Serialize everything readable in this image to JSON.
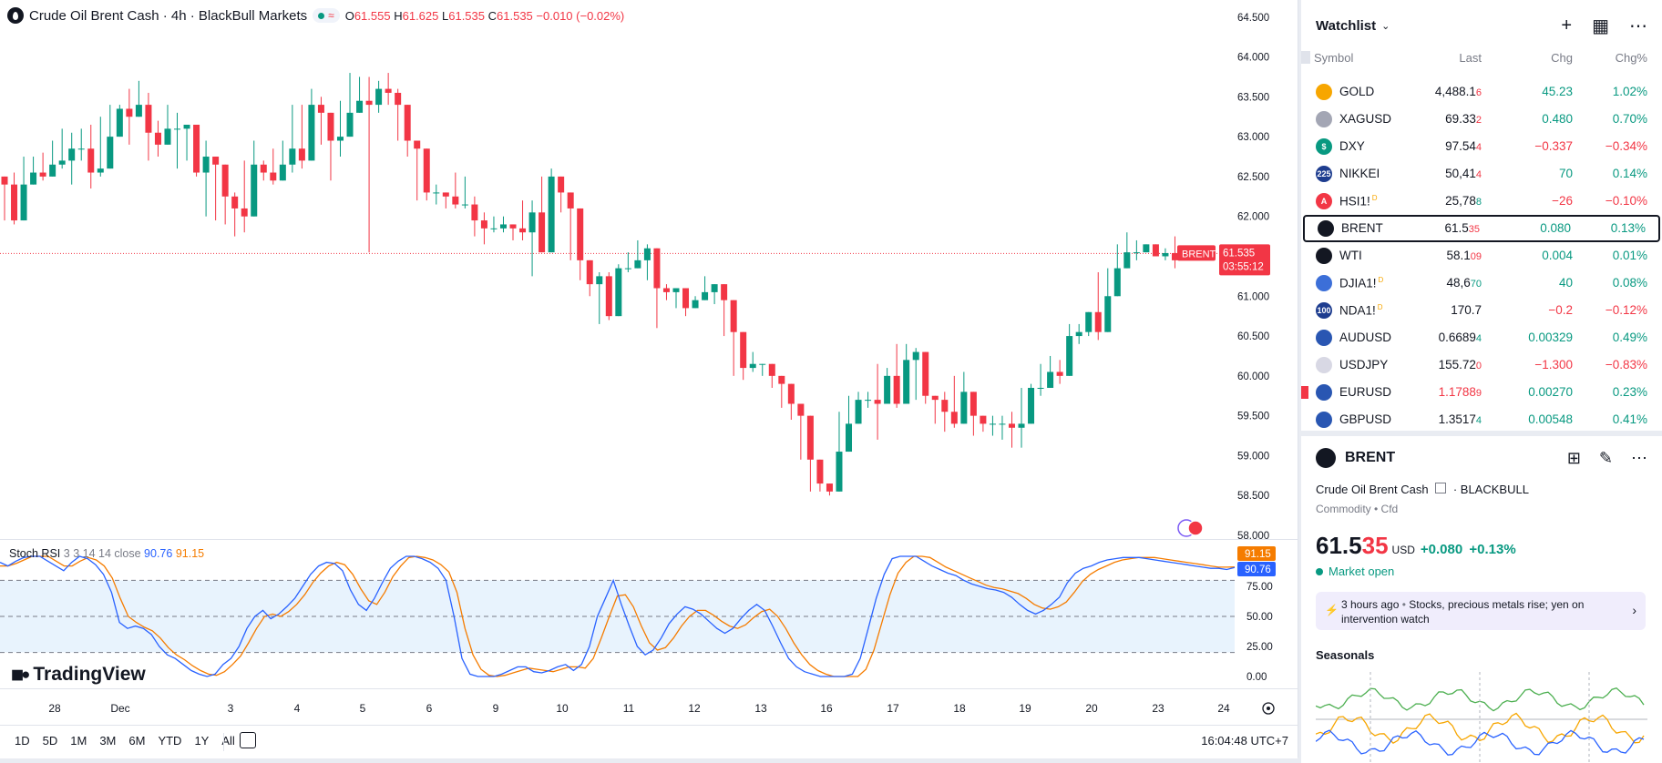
{
  "legend": {
    "symbol_title": "Crude Oil Brent Cash · 4h · BlackBull Markets",
    "open_label": "O",
    "open": "61.555",
    "high_label": "H",
    "high": "61.625",
    "low_label": "L",
    "low": "61.535",
    "close_label": "C",
    "close": "61.535",
    "change": "−0.010 (−0.02%)",
    "pill_glyph": "≈"
  },
  "price_axis": {
    "labels": [
      "64.500",
      "64.000",
      "63.500",
      "63.000",
      "62.500",
      "62.000",
      "61.500",
      "61.000",
      "60.500",
      "60.000",
      "59.500",
      "59.000",
      "58.500",
      "58.000"
    ],
    "current_tag": "BRENT",
    "current_price": "61.535",
    "countdown": "03:55:12"
  },
  "rsi": {
    "name": "Stoch RSI",
    "params": "3 3 14 14 close",
    "k_value": "90.76",
    "d_value": "91.15",
    "axis_labels": [
      "75.00",
      "50.00",
      "25.00",
      "0.00"
    ],
    "k_color": "#2962ff",
    "d_color": "#f57c00"
  },
  "time_axis": {
    "labels": [
      "28",
      "Dec",
      "3",
      "4",
      "5",
      "6",
      "9",
      "10",
      "11",
      "12",
      "13",
      "16",
      "17",
      "18",
      "19",
      "20",
      "23",
      "24"
    ]
  },
  "brand": {
    "name": "TradingView"
  },
  "bottom_bar": {
    "periods": [
      "1D",
      "5D",
      "1M",
      "3M",
      "6M",
      "YTD",
      "1Y",
      "All"
    ],
    "clock": "16:04:48 UTC+7"
  },
  "chart_data": {
    "type": "candlestick",
    "title": "Crude Oil Brent Cash · 4h · BlackBull Markets",
    "ylim": [
      58.0,
      64.6
    ],
    "current_price": 61.535,
    "up_color": "#089981",
    "down_color": "#f23645",
    "x": [
      "28",
      "Dec",
      "3",
      "4",
      "5",
      "6",
      "9",
      "10",
      "11",
      "12",
      "13",
      "16",
      "17",
      "18",
      "19",
      "20",
      "23",
      "24"
    ],
    "candles": [
      [
        62.4,
        62.3,
        61.95
      ],
      [
        61.95,
        62.55,
        61.9
      ],
      [
        62.4,
        62.75,
        62.35
      ],
      [
        62.55,
        62.75,
        62.5
      ],
      [
        62.5,
        62.8,
        62.45
      ],
      [
        62.65,
        62.95,
        62.55
      ],
      [
        62.7,
        63.1,
        62.6
      ],
      [
        62.85,
        63.05,
        62.4
      ],
      [
        62.85,
        63.1,
        62.7
      ],
      [
        62.55,
        63.15,
        62.35
      ],
      [
        62.6,
        63.25,
        62.5
      ],
      [
        63.0,
        63.4,
        62.9
      ],
      [
        63.35,
        63.4,
        63.0
      ],
      [
        63.25,
        63.6,
        62.9
      ],
      [
        63.4,
        63.7,
        63.3
      ],
      [
        63.05,
        63.55,
        62.7
      ],
      [
        62.9,
        63.2,
        62.75
      ],
      [
        63.1,
        63.4,
        63.0
      ],
      [
        63.1,
        63.3,
        62.6
      ],
      [
        63.15,
        63.1,
        62.7
      ],
      [
        62.55,
        63.05,
        62.5
      ],
      [
        62.75,
        62.95,
        62.0
      ],
      [
        62.65,
        62.75,
        61.95
      ],
      [
        62.25,
        62.5,
        61.9
      ],
      [
        62.1,
        62.3,
        61.75
      ],
      [
        62.0,
        62.7,
        61.8
      ],
      [
        62.65,
        62.95,
        62.45
      ],
      [
        62.55,
        62.7,
        62.45
      ],
      [
        62.45,
        62.85,
        62.4
      ],
      [
        62.65,
        62.95,
        62.55
      ],
      [
        62.85,
        63.4,
        62.55
      ],
      [
        62.7,
        63.4,
        62.6
      ],
      [
        63.4,
        63.6,
        63.05
      ],
      [
        63.3,
        63.5,
        62.9
      ],
      [
        62.95,
        63.2,
        62.45
      ],
      [
        63.0,
        63.45,
        62.75
      ],
      [
        63.3,
        63.8,
        63.2
      ],
      [
        63.45,
        63.75,
        63.35
      ],
      [
        63.4,
        63.75,
        61.55
      ],
      [
        63.6,
        63.7,
        63.3
      ],
      [
        63.55,
        63.8,
        63.4
      ],
      [
        63.4,
        63.6,
        62.95
      ],
      [
        62.95,
        62.85,
        62.75
      ],
      [
        62.85,
        62.95,
        62.2
      ],
      [
        62.3,
        62.65,
        62.2
      ],
      [
        62.3,
        62.4,
        62.15
      ],
      [
        62.25,
        62.3,
        62.1
      ],
      [
        62.15,
        62.55,
        62.1
      ],
      [
        62.15,
        62.5,
        62.1
      ],
      [
        61.95,
        62.25,
        61.75
      ],
      [
        61.85,
        62.05,
        61.65
      ],
      [
        61.85,
        62.0,
        61.8
      ],
      [
        61.9,
        62.0,
        61.8
      ],
      [
        61.85,
        61.9,
        61.7
      ],
      [
        61.8,
        62.2,
        61.7
      ],
      [
        62.05,
        62.2,
        61.25
      ],
      [
        61.55,
        62.5,
        61.55
      ],
      [
        62.5,
        62.6,
        62.4
      ],
      [
        62.3,
        62.5,
        62.05
      ],
      [
        62.1,
        62.1,
        61.45
      ],
      [
        61.45,
        61.5,
        61.2
      ],
      [
        61.15,
        61.25,
        61.0
      ],
      [
        61.25,
        61.3,
        60.65
      ],
      [
        60.75,
        61.3,
        60.7
      ],
      [
        61.35,
        61.4,
        61.2
      ],
      [
        61.35,
        61.55,
        61.3
      ],
      [
        61.45,
        61.7,
        61.4
      ],
      [
        61.6,
        61.65,
        61.2
      ],
      [
        61.1,
        61.15,
        60.6
      ],
      [
        61.05,
        61.15,
        60.95
      ],
      [
        61.1,
        61.1,
        60.85
      ],
      [
        60.85,
        61.0,
        60.75
      ],
      [
        60.95,
        61.0,
        60.85
      ],
      [
        61.05,
        61.25,
        61.0
      ],
      [
        61.15,
        61.1,
        60.9
      ],
      [
        60.95,
        60.9,
        60.5
      ],
      [
        60.55,
        60.6,
        60.0
      ],
      [
        60.1,
        60.4,
        59.95
      ],
      [
        60.15,
        60.3,
        60.05
      ],
      [
        60.15,
        60.15,
        60.0
      ],
      [
        60.0,
        60.1,
        59.85
      ],
      [
        59.9,
        59.95,
        59.6
      ],
      [
        59.65,
        59.7,
        59.45
      ],
      [
        59.5,
        59.55,
        58.95
      ],
      [
        58.95,
        58.95,
        58.55
      ],
      [
        58.65,
        58.7,
        58.55
      ],
      [
        58.55,
        58.65,
        58.5
      ],
      [
        59.05,
        59.55,
        59.0
      ],
      [
        59.4,
        59.75,
        59.35
      ],
      [
        59.7,
        59.8,
        59.7
      ],
      [
        59.7,
        59.8,
        59.6
      ],
      [
        59.65,
        60.15,
        59.2
      ],
      [
        60.0,
        60.1,
        59.85
      ],
      [
        59.65,
        60.4,
        59.6
      ],
      [
        60.2,
        60.4,
        60.05
      ],
      [
        60.3,
        60.35,
        59.7
      ],
      [
        59.75,
        59.95,
        59.65
      ],
      [
        59.7,
        59.7,
        59.4
      ],
      [
        59.55,
        59.8,
        59.3
      ],
      [
        59.4,
        60.0,
        59.35
      ],
      [
        59.8,
        60.05,
        59.55
      ],
      [
        59.5,
        59.55,
        59.25
      ],
      [
        59.4,
        59.45,
        59.3
      ],
      [
        59.4,
        59.5,
        59.25
      ],
      [
        59.4,
        59.5,
        59.2
      ],
      [
        59.35,
        59.55,
        59.1
      ],
      [
        59.4,
        59.85,
        59.1
      ],
      [
        59.85,
        59.9,
        59.75
      ],
      [
        59.85,
        60.15,
        59.75
      ],
      [
        60.05,
        60.25,
        59.95
      ],
      [
        60.0,
        60.2,
        59.9
      ],
      [
        60.5,
        60.65,
        60.4
      ],
      [
        60.55,
        60.65,
        60.4
      ],
      [
        60.8,
        60.75,
        60.5
      ],
      [
        60.55,
        61.3,
        60.45
      ],
      [
        61.0,
        61.35,
        61.0
      ],
      [
        61.35,
        61.65,
        61.3
      ],
      [
        61.55,
        61.8,
        61.45
      ],
      [
        61.55,
        61.7,
        61.45
      ],
      [
        61.65,
        61.65,
        61.55
      ],
      [
        61.5,
        61.6,
        61.5
      ],
      [
        61.54,
        61.6,
        61.45
      ],
      [
        61.45,
        61.75,
        61.35
      ],
      [
        61.55,
        61.625,
        61.535
      ]
    ],
    "stoch_rsi": {
      "params": "3 3 14 14 close",
      "axis_ticks": [
        75,
        50,
        25,
        0
      ],
      "overbought": 80,
      "oversold": 20,
      "k": [
        95,
        92,
        96,
        99,
        104,
        102,
        96,
        92,
        88,
        95,
        100,
        98,
        93,
        85,
        70,
        45,
        40,
        42,
        40,
        35,
        25,
        18,
        15,
        10,
        5,
        2,
        0,
        2,
        10,
        15,
        25,
        40,
        50,
        55,
        48,
        52,
        58,
        65,
        75,
        85,
        92,
        95,
        94,
        88,
        72,
        60,
        55,
        65,
        78,
        90,
        96,
        103,
        100,
        98,
        95,
        90,
        80,
        50,
        15,
        2,
        0,
        0,
        0,
        2,
        5,
        8,
        8,
        4,
        3,
        5,
        8,
        10,
        5,
        10,
        25,
        50,
        65,
        80,
        60,
        42,
        25,
        18,
        22,
        32,
        44,
        52,
        58,
        56,
        52,
        46,
        40,
        36,
        40,
        48,
        55,
        60,
        55,
        42,
        28,
        15,
        8,
        4,
        2,
        0,
        0,
        0,
        0,
        2,
        15,
        40,
        65,
        85,
        98,
        100,
        102,
        100,
        96,
        92,
        89,
        86,
        84,
        80,
        77,
        75,
        73,
        72,
        70,
        66,
        60,
        55,
        52,
        55,
        60,
        66,
        78,
        86,
        90,
        92,
        95,
        97,
        98,
        99,
        99,
        99,
        98,
        97,
        96,
        95,
        94,
        93,
        92,
        91,
        90,
        90,
        89,
        90.76
      ],
      "d": [
        92,
        92,
        94,
        97,
        101,
        103,
        100,
        96,
        92,
        92,
        96,
        99,
        97,
        92,
        82,
        65,
        50,
        45,
        41,
        38,
        32,
        24,
        18,
        14,
        9,
        5,
        2,
        1,
        4,
        10,
        17,
        28,
        40,
        50,
        52,
        50,
        54,
        60,
        68,
        78,
        86,
        92,
        95,
        93,
        85,
        73,
        63,
        60,
        70,
        83,
        92,
        99,
        101,
        99,
        97,
        93,
        87,
        70,
        40,
        18,
        6,
        1,
        0,
        1,
        3,
        5,
        7,
        6,
        5,
        4,
        6,
        8,
        8,
        7,
        15,
        32,
        50,
        67,
        68,
        58,
        42,
        28,
        22,
        24,
        32,
        42,
        50,
        55,
        55,
        51,
        46,
        42,
        40,
        43,
        49,
        54,
        56,
        50,
        40,
        28,
        18,
        10,
        5,
        2,
        0,
        0,
        0,
        0,
        6,
        22,
        45,
        68,
        86,
        95,
        100,
        101,
        99,
        95,
        91,
        88,
        85,
        82,
        79,
        76,
        74,
        73,
        71,
        69,
        65,
        60,
        57,
        56,
        58,
        62,
        70,
        79,
        85,
        89,
        92,
        95,
        97,
        98,
        99,
        99,
        99,
        98,
        97,
        96,
        95,
        94,
        93,
        92,
        91,
        91,
        91.15
      ]
    }
  },
  "watchlist": {
    "title": "Watchlist",
    "columns": {
      "symbol": "Symbol",
      "last": "Last",
      "chg": "Chg",
      "chg_pct": "Chg%"
    },
    "rows": [
      {
        "icon_text": "",
        "icon_color": "#f7a600",
        "symbol": "GOLD",
        "sup": "",
        "last_main": "4,488.1",
        "last_tail": "6",
        "chg": "45.23",
        "pct": "1.02%",
        "dir": "pos",
        "tail_dir": "neg"
      },
      {
        "icon_text": "",
        "icon_color": "#a3a6b4",
        "symbol": "XAGUSD",
        "sup": "",
        "last_main": "69.33",
        "last_tail": "2",
        "chg": "0.480",
        "pct": "0.70%",
        "dir": "pos",
        "tail_dir": "neg"
      },
      {
        "icon_text": "$",
        "icon_color": "#089981",
        "symbol": "DXY",
        "sup": "",
        "last_main": "97.54",
        "last_tail": "4",
        "chg": "−0.337",
        "pct": "−0.34%",
        "dir": "neg",
        "tail_dir": "neg"
      },
      {
        "icon_text": "225",
        "icon_color": "#1e3d8f",
        "symbol": "NIKKEI",
        "sup": "",
        "last_main": "50,41",
        "last_tail": "4",
        "chg": "70",
        "pct": "0.14%",
        "dir": "pos",
        "tail_dir": "neg"
      },
      {
        "icon_text": "A",
        "icon_color": "#f23645",
        "symbol": "HSI1!",
        "sup": "D",
        "last_main": "25,78",
        "last_tail": "8",
        "chg": "−26",
        "pct": "−0.10%",
        "dir": "neg",
        "tail_dir": "pos"
      },
      {
        "icon_text": "",
        "icon_color": "#131722",
        "symbol": "BRENT",
        "sup": "",
        "last_main": "61.5",
        "last_tail": "35",
        "chg": "0.080",
        "pct": "0.13%",
        "dir": "pos",
        "tail_dir": "neg",
        "selected": true
      },
      {
        "icon_text": "",
        "icon_color": "#131722",
        "symbol": "WTI",
        "sup": "",
        "last_main": "58.1",
        "last_tail": "09",
        "chg": "0.004",
        "pct": "0.01%",
        "dir": "pos",
        "tail_dir": "neg"
      },
      {
        "icon_text": "",
        "icon_color": "#3c6fd8",
        "symbol": "DJIA1!",
        "sup": "D",
        "last_main": "48,6",
        "last_tail": "70",
        "chg": "40",
        "pct": "0.08%",
        "dir": "pos",
        "tail_dir": "pos"
      },
      {
        "icon_text": "100",
        "icon_color": "#1e3d8f",
        "symbol": "NDA1!",
        "sup": "D",
        "last_main": "170.7",
        "last_tail": "",
        "chg": "−0.2",
        "pct": "−0.12%",
        "dir": "neg",
        "tail_dir": "neg"
      },
      {
        "icon_text": "",
        "icon_color": "#2956b2",
        "symbol": "AUDUSD",
        "sup": "",
        "last_main": "0.6689",
        "last_tail": "4",
        "chg": "0.00329",
        "pct": "0.49%",
        "dir": "pos",
        "tail_dir": "pos"
      },
      {
        "icon_text": "",
        "icon_color": "#d8d8e4",
        "symbol": "USDJPY",
        "sup": "",
        "last_main": "155.72",
        "last_tail": "0",
        "chg": "−1.300",
        "pct": "−0.83%",
        "dir": "neg",
        "tail_dir": "neg"
      },
      {
        "icon_text": "",
        "icon_color": "#2956b2",
        "symbol": "EURUSD",
        "sup": "",
        "last_main": "1.1788",
        "last_tail": "9",
        "chg": "0.00270",
        "pct": "0.23%",
        "dir": "pos",
        "tail_dir": "neg",
        "last_red": true,
        "flagged": true
      },
      {
        "icon_text": "",
        "icon_color": "#2956b2",
        "symbol": "GBPUSD",
        "sup": "",
        "last_main": "1.3517",
        "last_tail": "4",
        "chg": "0.00548",
        "pct": "0.41%",
        "dir": "pos",
        "tail_dir": "pos"
      }
    ]
  },
  "details": {
    "symbol": "BRENT",
    "name": "Crude Oil Brent Cash",
    "exchange": "BLACKBULL",
    "category": "Commodity • Cfd",
    "price_main": "61.5",
    "price_tail": "35",
    "currency": "USD",
    "change": "+0.080",
    "change_pct": "+0.13%",
    "status": "Market open",
    "news_time": "3 hours ago",
    "news_sep": "•",
    "news_headline": "Stocks, precious metals rise; yen on intervention watch",
    "seasonals_title": "Seasonals"
  }
}
